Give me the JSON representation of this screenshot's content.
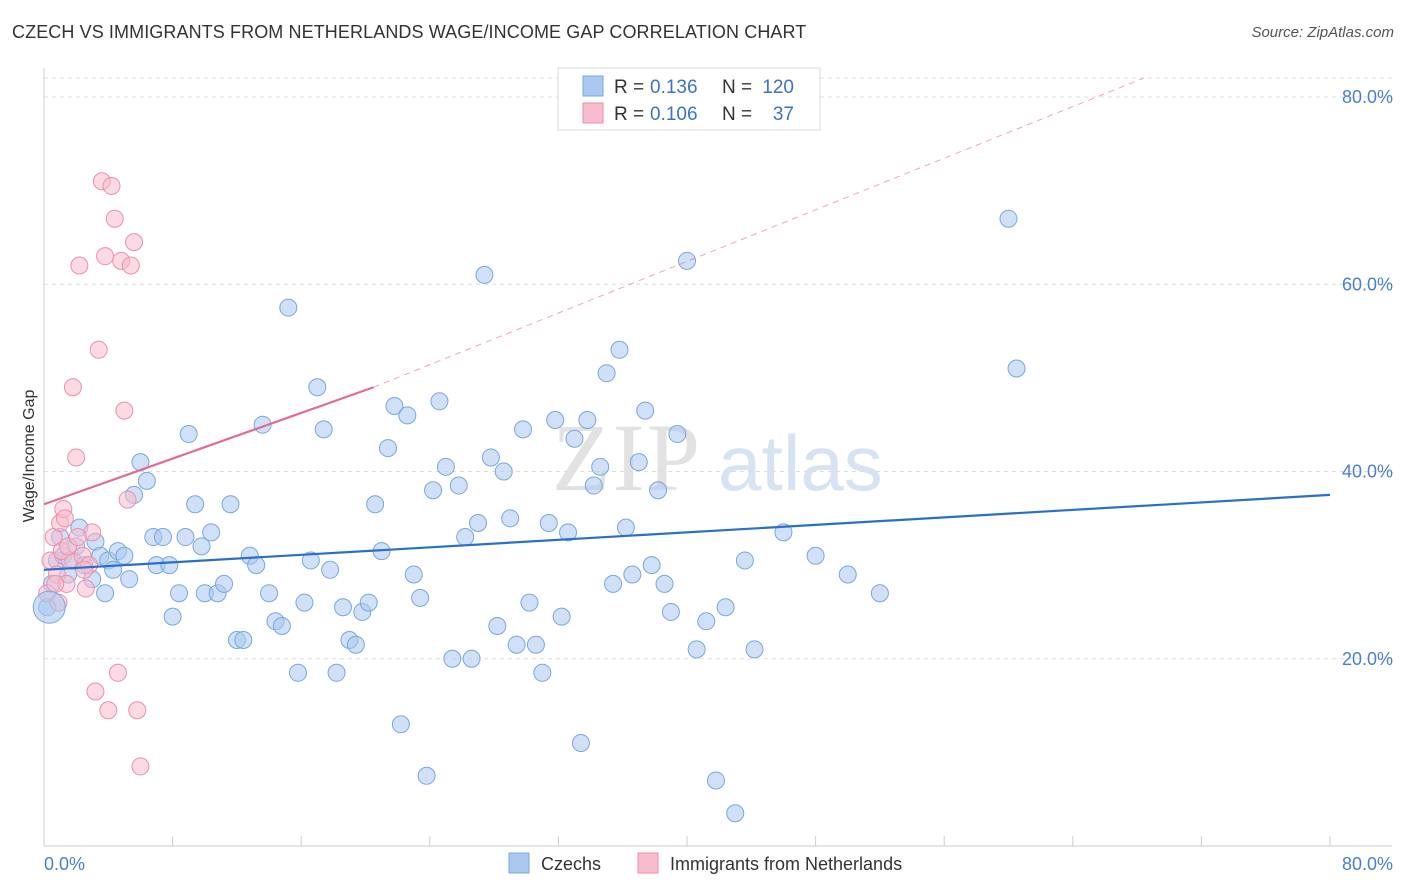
{
  "title": "CZECH VS IMMIGRANTS FROM NETHERLANDS WAGE/INCOME GAP CORRELATION CHART",
  "source": "Source: ZipAtlas.com",
  "watermark": {
    "zip": "ZIP",
    "atlas": "atlas"
  },
  "legend": {
    "rows": [
      {
        "r_label": "R =",
        "r_value": "0.136",
        "n_label": "N =",
        "n_value": "120",
        "color": "#aac8f0",
        "stroke": "#7aa6df"
      },
      {
        "r_label": "R =",
        "r_value": "0.106",
        "n_label": "N =",
        "n_value": "37",
        "color": "#f7bccd",
        "stroke": "#ec8fab"
      }
    ]
  },
  "bottom_legend": [
    {
      "label": "Czechs",
      "color": "#aac8f0",
      "stroke": "#7aa6df"
    },
    {
      "label": "Immigrants from Netherlands",
      "color": "#f7bccd",
      "stroke": "#ec8fab"
    }
  ],
  "chart_data": {
    "type": "scatter",
    "title": "CZECH VS IMMIGRANTS FROM NETHERLANDS WAGE/INCOME GAP CORRELATION CHART",
    "xlabel": "",
    "ylabel": "Wage/Income Gap",
    "xlim": [
      0,
      80
    ],
    "ylim": [
      0,
      82
    ],
    "x_tick_labels": [
      "0.0%",
      "80.0%"
    ],
    "y_ticks": [
      20,
      40,
      60,
      80
    ],
    "y_tick_labels": [
      "20.0%",
      "40.0%",
      "60.0%",
      "80.0%"
    ],
    "grid": true,
    "legend_position": "top-center",
    "series": [
      {
        "name": "Czechs",
        "color": "#aac8f0",
        "stroke": "#7aa6df",
        "trend": {
          "x": [
            0,
            80
          ],
          "y": [
            29.5,
            37.5
          ],
          "color": "#2a6fcc"
        },
        "points": [
          [
            0.2,
            25.5
          ],
          [
            0.5,
            28
          ],
          [
            0.8,
            30.5
          ],
          [
            1.0,
            33
          ],
          [
            1.2,
            31
          ],
          [
            1.5,
            29
          ],
          [
            1.8,
            30.5
          ],
          [
            2.0,
            32
          ],
          [
            2.2,
            34
          ],
          [
            2.5,
            30
          ],
          [
            3.0,
            28.5
          ],
          [
            3.2,
            32.5
          ],
          [
            3.5,
            31
          ],
          [
            3.8,
            27
          ],
          [
            4.0,
            30.5
          ],
          [
            4.3,
            29.5
          ],
          [
            4.6,
            31.5
          ],
          [
            5.0,
            31
          ],
          [
            5.3,
            28.5
          ],
          [
            5.6,
            37.5
          ],
          [
            6.0,
            41
          ],
          [
            6.4,
            39
          ],
          [
            6.8,
            33
          ],
          [
            7.0,
            30
          ],
          [
            7.4,
            33
          ],
          [
            7.8,
            30
          ],
          [
            8.0,
            24.5
          ],
          [
            8.4,
            27
          ],
          [
            8.8,
            33
          ],
          [
            9.0,
            44
          ],
          [
            9.4,
            36.5
          ],
          [
            9.8,
            32
          ],
          [
            10.0,
            27
          ],
          [
            10.4,
            33.5
          ],
          [
            10.8,
            27
          ],
          [
            11.2,
            28
          ],
          [
            11.6,
            36.5
          ],
          [
            12.0,
            22
          ],
          [
            12.4,
            22
          ],
          [
            12.8,
            31
          ],
          [
            13.2,
            30
          ],
          [
            13.6,
            45
          ],
          [
            14.0,
            27
          ],
          [
            14.4,
            24
          ],
          [
            14.8,
            23.5
          ],
          [
            15.2,
            57.5
          ],
          [
            15.8,
            18.5
          ],
          [
            16.2,
            26
          ],
          [
            16.6,
            30.5
          ],
          [
            17.0,
            49
          ],
          [
            17.4,
            44.5
          ],
          [
            17.8,
            29.5
          ],
          [
            18.2,
            18.5
          ],
          [
            18.6,
            25.5
          ],
          [
            19.0,
            22
          ],
          [
            19.4,
            21.5
          ],
          [
            19.8,
            25
          ],
          [
            20.2,
            26
          ],
          [
            20.6,
            36.5
          ],
          [
            21.0,
            31.5
          ],
          [
            21.4,
            42.5
          ],
          [
            21.8,
            47
          ],
          [
            22.2,
            13
          ],
          [
            22.6,
            46
          ],
          [
            23.0,
            29
          ],
          [
            23.4,
            26.5
          ],
          [
            23.8,
            7.5
          ],
          [
            24.2,
            38
          ],
          [
            24.6,
            47.5
          ],
          [
            25.0,
            40.5
          ],
          [
            25.4,
            20
          ],
          [
            25.8,
            38.5
          ],
          [
            26.2,
            33
          ],
          [
            26.6,
            20
          ],
          [
            27.0,
            34.5
          ],
          [
            27.4,
            61
          ],
          [
            27.8,
            41.5
          ],
          [
            28.2,
            23.5
          ],
          [
            28.6,
            40
          ],
          [
            29.0,
            35
          ],
          [
            29.4,
            21.5
          ],
          [
            29.8,
            44.5
          ],
          [
            30.2,
            26
          ],
          [
            30.6,
            21.5
          ],
          [
            31.0,
            18.5
          ],
          [
            31.4,
            34.5
          ],
          [
            31.8,
            45.5
          ],
          [
            32.2,
            24.5
          ],
          [
            32.6,
            33.5
          ],
          [
            33.0,
            43.5
          ],
          [
            33.4,
            11
          ],
          [
            33.8,
            45.5
          ],
          [
            34.2,
            38.5
          ],
          [
            34.6,
            40.5
          ],
          [
            35.0,
            50.5
          ],
          [
            35.4,
            28
          ],
          [
            35.8,
            53
          ],
          [
            36.2,
            34
          ],
          [
            36.6,
            29
          ],
          [
            37.0,
            41
          ],
          [
            37.4,
            46.5
          ],
          [
            37.8,
            30
          ],
          [
            38.2,
            38
          ],
          [
            38.6,
            28
          ],
          [
            39.0,
            25
          ],
          [
            39.4,
            44
          ],
          [
            40.0,
            62.5
          ],
          [
            40.6,
            21
          ],
          [
            41.2,
            24
          ],
          [
            41.8,
            7
          ],
          [
            42.4,
            25.5
          ],
          [
            43.0,
            3.5
          ],
          [
            43.6,
            30.5
          ],
          [
            44.2,
            21
          ],
          [
            46.0,
            33.5
          ],
          [
            48.0,
            31
          ],
          [
            50.0,
            29
          ],
          [
            52.0,
            27
          ],
          [
            60.0,
            67
          ],
          [
            60.5,
            51
          ]
        ]
      },
      {
        "name": "Immigrants from Netherlands",
        "color": "#f7bccd",
        "stroke": "#ec8fab",
        "trend": {
          "x": [
            0,
            20.5
          ],
          "y": [
            36.5,
            49
          ],
          "color": "#e46b96"
        },
        "trend_extension": {
          "x": [
            20.5,
            80
          ],
          "y": [
            49,
            90
          ]
        },
        "points": [
          [
            0.2,
            27
          ],
          [
            0.4,
            30.5
          ],
          [
            0.6,
            33
          ],
          [
            0.8,
            29
          ],
          [
            1.0,
            34.5
          ],
          [
            1.2,
            36
          ],
          [
            1.4,
            28
          ],
          [
            1.6,
            30.5
          ],
          [
            1.8,
            49
          ],
          [
            2.0,
            41.5
          ],
          [
            2.2,
            62
          ],
          [
            2.4,
            31
          ],
          [
            2.6,
            27.5
          ],
          [
            2.8,
            30
          ],
          [
            3.0,
            33.5
          ],
          [
            3.2,
            16.5
          ],
          [
            3.4,
            53
          ],
          [
            3.6,
            71
          ],
          [
            3.8,
            63
          ],
          [
            4.0,
            14.5
          ],
          [
            4.2,
            70.5
          ],
          [
            4.4,
            67
          ],
          [
            4.6,
            18.5
          ],
          [
            4.8,
            62.5
          ],
          [
            5.0,
            46.5
          ],
          [
            5.2,
            37
          ],
          [
            5.4,
            62
          ],
          [
            5.6,
            64.5
          ],
          [
            5.8,
            14.5
          ],
          [
            6.0,
            8.5
          ],
          [
            1.1,
            31.5
          ],
          [
            1.3,
            35
          ],
          [
            0.9,
            26
          ],
          [
            2.5,
            29.5
          ],
          [
            0.7,
            28
          ],
          [
            1.5,
            32
          ],
          [
            2.1,
            33
          ]
        ]
      }
    ]
  }
}
